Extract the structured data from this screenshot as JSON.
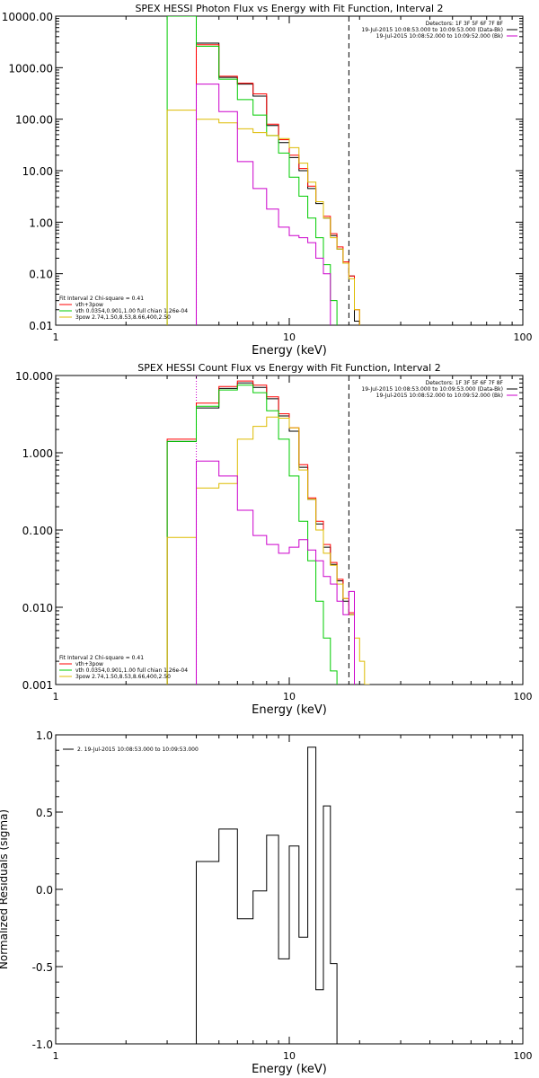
{
  "chart_data": [
    {
      "type": "line",
      "title": "SPEX HESSI Photon Flux vs Energy with Fit Function, Interval 2",
      "xlabel": "Energy (keV)",
      "ylabel": "",
      "xscale": "log",
      "yscale": "log",
      "xlim": [
        1,
        100
      ],
      "ylim": [
        0.01,
        10000
      ],
      "x_ticks": [
        "1",
        "10",
        "100"
      ],
      "y_ticks": [
        "0.01",
        "0.10",
        "1.00",
        "10.00",
        "100.00",
        "1000.00",
        "10000.00"
      ],
      "vlines": [
        {
          "x": 4.0,
          "style": "dotted",
          "color": "#cc00cc"
        },
        {
          "x": 18.0,
          "style": "dashed",
          "color": "#000000"
        }
      ],
      "legend_top": {
        "lines": [
          {
            "text": "Detectors: 1F 3F 5F 6F 7F 8F",
            "color": "#000000"
          },
          {
            "text": "19-Jul-2015 10:08:53.000 to 10:09:53.000 (Data-Bk)",
            "color": "#000000"
          },
          {
            "text": "19-Jul-2015 10:08:52.000 to 10:09:52.000 (Bk)",
            "color": "#cc00cc"
          }
        ]
      },
      "legend_bottom": {
        "lines": [
          {
            "text": "Fit Interval 2   Chi-square = 0.41",
            "color": "#000000"
          },
          {
            "text": "vth+3pow",
            "color": "#ff0000"
          },
          {
            "text": "vth 0.0354,0.901,1.00  full chian 1.26e-04",
            "color": "#00cc00"
          },
          {
            "text": "3pow 2.74,1.50,8.53,8.66,400,2.50",
            "color": "#ddbb00"
          }
        ]
      },
      "edges": [
        3.0,
        4.0,
        5.0,
        6.0,
        7.0,
        8.0,
        9.0,
        10.0,
        11.0,
        12.0,
        13.0,
        14.0,
        15.0,
        16.0,
        17.0,
        18.0,
        19.0,
        20.0,
        21.0,
        22.0
      ],
      "series": [
        {
          "color": "#000000",
          "values": [
            null,
            3000,
            650,
            480,
            280,
            75,
            35,
            18,
            10,
            4.5,
            2.3,
            1.2,
            0.55,
            0.3,
            0.16,
            0.09,
            0.012,
            null,
            null
          ]
        },
        {
          "color": "#ff0000",
          "values": [
            null,
            2800,
            680,
            500,
            310,
            80,
            40,
            20,
            11,
            5,
            2.5,
            1.3,
            0.6,
            0.33,
            0.17,
            0.09,
            0.02,
            null,
            null
          ]
        },
        {
          "color": "#00cc00",
          "values": [
            10000,
            2600,
            600,
            240,
            120,
            48,
            22,
            7.5,
            3.2,
            1.2,
            0.5,
            0.15,
            0.03,
            0.008,
            null,
            null,
            null,
            null,
            null
          ]
        },
        {
          "color": "#ddbb00",
          "values": [
            150,
            100,
            85,
            65,
            55,
            48,
            42,
            28,
            14,
            6,
            2.5,
            1.2,
            0.5,
            0.3,
            0.16,
            0.08,
            0.02,
            0.008,
            null
          ]
        },
        {
          "color": "#cc00cc",
          "values": [
            null,
            480,
            140,
            15,
            4.5,
            1.8,
            0.8,
            0.55,
            0.5,
            0.4,
            0.2,
            0.1,
            null,
            null,
            null,
            null,
            null,
            null,
            null
          ]
        }
      ]
    },
    {
      "type": "line",
      "title": "SPEX HESSI Count Flux vs Energy with Fit Function, Interval 2",
      "xlabel": "Energy (keV)",
      "ylabel": "",
      "xscale": "log",
      "yscale": "log",
      "xlim": [
        1,
        100
      ],
      "ylim": [
        0.001,
        10
      ],
      "x_ticks": [
        "1",
        "10",
        "100"
      ],
      "y_ticks": [
        "0.001",
        "0.010",
        "0.100",
        "1.000",
        "10.000"
      ],
      "vlines": [
        {
          "x": 4.0,
          "style": "dotted",
          "color": "#cc00cc"
        },
        {
          "x": 18.0,
          "style": "dashed",
          "color": "#000000"
        }
      ],
      "legend_top": {
        "lines": [
          {
            "text": "Detectors: 1F 3F 5F 6F 7F 8F",
            "color": "#000000"
          },
          {
            "text": "19-Jul-2015 10:08:53.000 to 10:09:53.000 (Data-Bk)",
            "color": "#000000"
          },
          {
            "text": "19-Jul-2015 10:08:52.000 to 10:09:52.000 (Bk)",
            "color": "#cc00cc"
          }
        ]
      },
      "legend_bottom": {
        "lines": [
          {
            "text": "Fit Interval 2   Chi-square = 0.41",
            "color": "#000000"
          },
          {
            "text": "vth+3pow",
            "color": "#ff0000"
          },
          {
            "text": "vth 0.0354,0.901,1.00  full chian 1.26e-04",
            "color": "#00cc00"
          },
          {
            "text": "3pow 2.74,1.50,8.53,8.66,400,2.50",
            "color": "#ddbb00"
          }
        ]
      },
      "edges": [
        3.0,
        4.0,
        5.0,
        6.0,
        7.0,
        8.0,
        9.0,
        10.0,
        11.0,
        12.0,
        13.0,
        14.0,
        15.0,
        16.0,
        17.0,
        18.0,
        19.0,
        20.0,
        21.0,
        22.0
      ],
      "series": [
        {
          "color": "#000000",
          "values": [
            1.4,
            3.8,
            6.8,
            8.0,
            7.0,
            5.0,
            3.0,
            1.9,
            0.65,
            0.25,
            0.12,
            0.06,
            0.036,
            0.022,
            0.012,
            0.008,
            null,
            null,
            null
          ]
        },
        {
          "color": "#ff0000",
          "values": [
            1.5,
            4.4,
            7.2,
            8.5,
            7.5,
            5.3,
            3.2,
            2.1,
            0.7,
            0.26,
            0.13,
            0.065,
            0.038,
            0.023,
            0.013,
            0.0085,
            null,
            null,
            null
          ]
        },
        {
          "color": "#00cc00",
          "values": [
            1.4,
            4.0,
            6.5,
            7.5,
            6.0,
            3.5,
            1.5,
            0.5,
            0.13,
            0.04,
            0.012,
            0.004,
            0.0015,
            0.0008,
            null,
            null,
            null,
            null,
            null
          ]
        },
        {
          "color": "#ddbb00",
          "values": [
            0.08,
            0.35,
            0.4,
            1.5,
            2.2,
            2.9,
            2.8,
            2.1,
            0.6,
            0.25,
            0.1,
            0.05,
            0.035,
            0.02,
            0.013,
            0.008,
            0.004,
            0.002,
            0.001
          ]
        },
        {
          "color": "#cc00cc",
          "values": [
            null,
            0.78,
            0.5,
            0.18,
            0.085,
            0.065,
            0.05,
            0.06,
            0.075,
            0.055,
            0.04,
            0.025,
            0.02,
            0.012,
            0.008,
            0.016,
            null,
            null,
            null
          ]
        }
      ]
    },
    {
      "type": "line",
      "title": "",
      "xlabel": "Energy (keV)",
      "ylabel": "Normalized Residuals (sigma)",
      "xscale": "log",
      "yscale": "linear",
      "xlim": [
        1,
        100
      ],
      "ylim": [
        -1.0,
        1.0
      ],
      "x_ticks": [
        "1",
        "10",
        "100"
      ],
      "y_ticks": [
        "-1.0",
        "-0.5",
        "0.0",
        "0.5",
        "1.0"
      ],
      "legend_top": {
        "lines": [
          {
            "text": "2. 19-Jul-2015 10:08:53.000 to 10:09:53.000",
            "color": "#000000"
          }
        ]
      },
      "edges": [
        4.0,
        5.0,
        6.0,
        7.0,
        8.0,
        9.0,
        10.0,
        11.0,
        12.0,
        13.0,
        14.0,
        15.0,
        16.0,
        17.0,
        18.0
      ],
      "series": [
        {
          "color": "#000000",
          "values": [
            0.18,
            0.39,
            -0.19,
            -0.01,
            0.35,
            -0.45,
            0.28,
            -0.31,
            0.92,
            -0.65,
            0.54,
            -0.48,
            null,
            null
          ]
        }
      ]
    }
  ]
}
